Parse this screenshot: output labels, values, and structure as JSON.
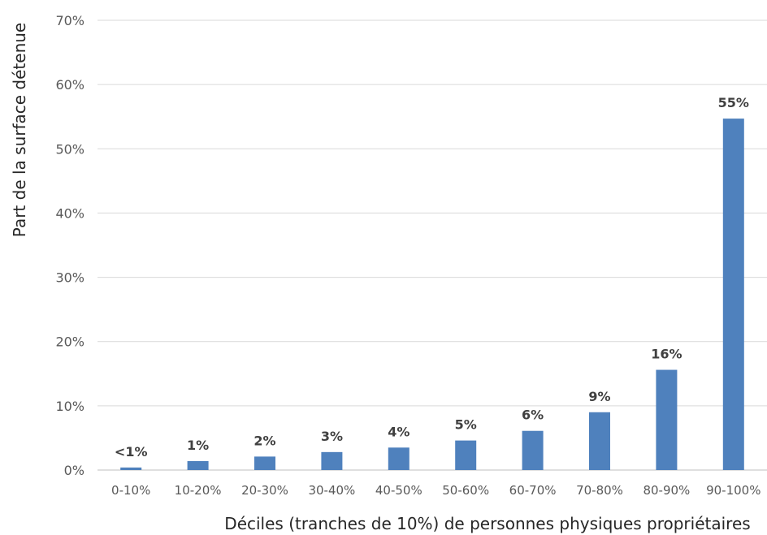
{
  "chart_data": {
    "type": "bar",
    "title": "",
    "xlabel": "Déciles (tranches de 10%) de personnes  physiques propriétaires",
    "ylabel": "Part de la surface détenue",
    "ylim": [
      0,
      70
    ],
    "yticks": [
      "0%",
      "10%",
      "20%",
      "30%",
      "40%",
      "50%",
      "60%",
      "70%"
    ],
    "categories": [
      "0-10%",
      "10-20%",
      "20-30%",
      "30-40%",
      "40-50%",
      "50-60%",
      "60-70%",
      "70-80%",
      "80-90%",
      "90-100%"
    ],
    "values": [
      0.4,
      1.4,
      2.1,
      2.8,
      3.5,
      4.6,
      6.1,
      9.0,
      15.6,
      54.7
    ],
    "data_labels": [
      "<1%",
      "1%",
      "2%",
      "3%",
      "4%",
      "5%",
      "6%",
      "9%",
      "16%",
      "55%"
    ],
    "bar_color": "#4f81bd",
    "grid": true,
    "legend": "none"
  }
}
